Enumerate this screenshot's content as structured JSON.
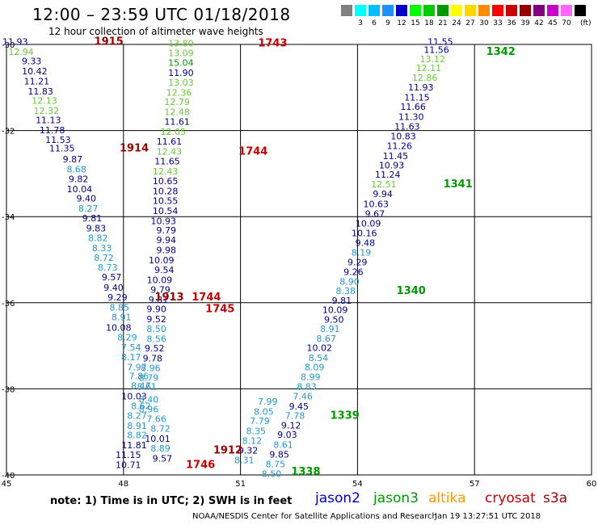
{
  "header": {
    "title": "12:00 – 23:59 UTC 01/18/2018",
    "subtitle": "12 hour collection of altimeter wave heights"
  },
  "legend": {
    "unit": "(ft)",
    "items": [
      {
        "label": "",
        "color": "#808080"
      },
      {
        "label": "3",
        "color": "#00ffff"
      },
      {
        "label": "6",
        "color": "#00bfff"
      },
      {
        "label": "9",
        "color": "#1e90ff"
      },
      {
        "label": "12",
        "color": "#0000cd"
      },
      {
        "label": "15",
        "color": "#00ff00"
      },
      {
        "label": "18",
        "color": "#00cc00"
      },
      {
        "label": "21",
        "color": "#009900"
      },
      {
        "label": "24",
        "color": "#ffff00"
      },
      {
        "label": "27",
        "color": "#ffd700"
      },
      {
        "label": "30",
        "color": "#ff8c00"
      },
      {
        "label": "33",
        "color": "#ff0000"
      },
      {
        "label": "36",
        "color": "#cc0000"
      },
      {
        "label": "39",
        "color": "#990000"
      },
      {
        "label": "42",
        "color": "#800080"
      },
      {
        "label": "45",
        "color": "#cc00cc"
      },
      {
        "label": "70",
        "color": "#ff66ff"
      },
      {
        "label": "",
        "color": "#000000"
      }
    ]
  },
  "note": "note:  1) Time is in UTC;  2) SWH is in feet",
  "satellites": [
    {
      "name": "jason2",
      "color": "#0000cc"
    },
    {
      "name": "jason3",
      "color": "#009900"
    },
    {
      "name": "altika",
      "color": "#ff9900"
    },
    {
      "name": "cryosat",
      "color": "#cc0000"
    },
    {
      "name": "s3a",
      "color": "#990000"
    }
  ],
  "footer": {
    "left": "NOAA/NESDIS Center for Satellite Applications and Research",
    "right": "Jan 19 13:27:51 UTC 2018"
  },
  "chart_data": {
    "type": "scatter",
    "title": "",
    "xlabel": "",
    "ylabel": "",
    "xlim": [
      45,
      60
    ],
    "ylim": [
      -40,
      -30
    ],
    "xticks": [
      45,
      48,
      51,
      54,
      57,
      60
    ],
    "yticks": [
      -30,
      -32,
      -34,
      -36,
      -38,
      -40
    ],
    "grid": true,
    "series": [
      {
        "color": "#000080",
        "points": [
          [
            45.55,
            -30.01,
            "11.93",
            "#00008b"
          ],
          [
            45.7,
            -30.24,
            "12.94",
            "#66cc33"
          ],
          [
            45.9,
            -30.46,
            "9.33",
            "#00008b"
          ],
          [
            46.05,
            -30.69,
            "10.42",
            "#00008b"
          ],
          [
            46.1,
            -30.93,
            "11.21",
            "#00008b"
          ],
          [
            46.2,
            -31.16,
            "11.83",
            "#00008b"
          ],
          [
            46.3,
            -31.38,
            "12.13",
            "#66cc33"
          ],
          [
            46.35,
            -31.61,
            "12.32",
            "#66cc33"
          ],
          [
            46.4,
            -31.83,
            "11.13",
            "#00008b"
          ],
          [
            46.5,
            -32.06,
            "11.78",
            "#00008b"
          ],
          [
            46.65,
            -32.29,
            "11.53",
            "#00008b"
          ],
          [
            46.75,
            -32.49,
            "11.35",
            "#00008b"
          ],
          [
            46.95,
            -32.74,
            "9.87",
            "#00008b"
          ],
          [
            47.05,
            -32.97,
            "8.68",
            "#2299cc"
          ],
          [
            47.1,
            -33.2,
            "9.82",
            "#00008b"
          ],
          [
            47.2,
            -33.43,
            "10.04",
            "#00008b"
          ],
          [
            47.3,
            -33.65,
            "9.40",
            "#00008b"
          ],
          [
            47.35,
            -33.88,
            "8.27",
            "#2299cc"
          ],
          [
            47.45,
            -34.11,
            "9.81",
            "#00008b"
          ],
          [
            47.55,
            -34.34,
            "9.83",
            "#00008b"
          ],
          [
            47.6,
            -34.57,
            "8.82",
            "#2299cc"
          ],
          [
            47.7,
            -34.8,
            "8.33",
            "#2299cc"
          ],
          [
            47.75,
            -35.03,
            "8.72",
            "#2299cc"
          ],
          [
            47.85,
            -35.25,
            "8.73",
            "#2299cc"
          ],
          [
            47.95,
            -35.48,
            "9.57",
            "#00008b"
          ],
          [
            48.0,
            -35.72,
            "9.40",
            "#00008b"
          ],
          [
            48.1,
            -35.95,
            "9.29",
            "#00008b"
          ],
          [
            48.15,
            -36.18,
            "8.85",
            "#2299cc"
          ],
          [
            48.2,
            -36.41,
            "8.91",
            "#2299cc"
          ],
          [
            48.2,
            -36.65,
            "10.08",
            "#00008b"
          ],
          [
            48.35,
            -36.88,
            "8.29",
            "#2299cc"
          ],
          [
            48.45,
            -37.11,
            "7.54",
            "#2299cc"
          ],
          [
            48.45,
            -37.34,
            "8.17",
            "#2299cc"
          ],
          [
            48.6,
            -37.57,
            "7.97",
            "#2299cc"
          ],
          [
            48.65,
            -37.78,
            "7.86",
            "#2299cc"
          ],
          [
            48.7,
            -38.0,
            "8.47",
            "#2299cc"
          ],
          [
            48.6,
            -38.25,
            "10.03",
            "#00008b"
          ],
          [
            48.7,
            -38.47,
            "8.62",
            "#2299cc"
          ],
          [
            48.6,
            -38.7,
            "8.27",
            "#2299cc"
          ],
          [
            48.6,
            -38.93,
            "8.91",
            "#2299cc"
          ],
          [
            48.6,
            -39.15,
            "8.82",
            "#2299cc"
          ],
          [
            48.6,
            -39.38,
            "11.81",
            "#00008b"
          ],
          [
            48.45,
            -39.61,
            "11.15",
            "#00008b"
          ],
          [
            48.45,
            -39.84,
            "10.71",
            "#00008b"
          ]
        ]
      },
      {
        "color": "#000080",
        "points": [
          [
            49.8,
            -30.05,
            "13.80",
            "#66cc33"
          ],
          [
            49.8,
            -30.27,
            "13.09",
            "#66cc33"
          ],
          [
            49.8,
            -30.5,
            "15.04",
            "#009900"
          ],
          [
            49.8,
            -30.73,
            "11.90",
            "#00008b"
          ],
          [
            49.8,
            -30.96,
            "13.03",
            "#66cc33"
          ],
          [
            49.75,
            -31.19,
            "12.36",
            "#66cc33"
          ],
          [
            49.7,
            -31.41,
            "12.79",
            "#66cc33"
          ],
          [
            49.7,
            -31.64,
            "12.48",
            "#66cc33"
          ],
          [
            49.7,
            -31.87,
            "11.61",
            "#00008b"
          ],
          [
            49.6,
            -32.1,
            "12.05",
            "#66cc33"
          ],
          [
            49.5,
            -32.33,
            "11.61",
            "#00008b"
          ],
          [
            49.5,
            -32.56,
            "12.43",
            "#66cc33"
          ],
          [
            49.45,
            -32.79,
            "11.65",
            "#00008b"
          ],
          [
            49.4,
            -33.02,
            "12.43",
            "#66cc33"
          ],
          [
            49.4,
            -33.25,
            "10.65",
            "#00008b"
          ],
          [
            49.4,
            -33.48,
            "10.28",
            "#00008b"
          ],
          [
            49.4,
            -33.71,
            "10.55",
            "#00008b"
          ],
          [
            49.4,
            -33.94,
            "10.54",
            "#00008b"
          ],
          [
            49.35,
            -34.17,
            "10.93",
            "#00008b"
          ],
          [
            49.35,
            -34.39,
            "9.79",
            "#00008b"
          ],
          [
            49.35,
            -34.62,
            "9.94",
            "#00008b"
          ],
          [
            49.35,
            -34.85,
            "9.98",
            "#00008b"
          ],
          [
            49.3,
            -35.08,
            "10.09",
            "#00008b"
          ],
          [
            49.3,
            -35.31,
            "9.54",
            "#00008b"
          ],
          [
            49.25,
            -35.54,
            "10.09",
            "#00008b"
          ],
          [
            49.2,
            -35.77,
            "9.79",
            "#00008b"
          ],
          [
            49.15,
            -36.0,
            "9.81",
            "#00008b"
          ],
          [
            49.1,
            -36.22,
            "9.90",
            "#00008b"
          ],
          [
            49.1,
            -36.45,
            "9.52",
            "#00008b"
          ],
          [
            49.1,
            -36.68,
            "8.50",
            "#2299cc"
          ],
          [
            49.1,
            -36.91,
            "8.56",
            "#2299cc"
          ],
          [
            49.05,
            -37.13,
            "9.52",
            "#00008b"
          ],
          [
            49.0,
            -37.36,
            "9.78",
            "#00008b"
          ],
          [
            48.95,
            -37.59,
            "8.96",
            "#2299cc"
          ],
          [
            48.9,
            -37.81,
            "8.79",
            "#2299cc"
          ],
          [
            48.85,
            -38.02,
            "8.61",
            "#2299cc"
          ],
          [
            48.9,
            -38.32,
            "8.40",
            "#2299cc"
          ],
          [
            48.9,
            -38.55,
            "8.96",
            "#2299cc"
          ],
          [
            49.1,
            -38.77,
            "7.66",
            "#2299cc"
          ],
          [
            49.2,
            -39.0,
            "8.72",
            "#2299cc"
          ],
          [
            49.2,
            -39.23,
            "10.01",
            "#00008b"
          ],
          [
            49.2,
            -39.46,
            "8.89",
            "#2299cc"
          ],
          [
            49.25,
            -39.69,
            "9.57",
            "#00008b"
          ]
        ]
      },
      {
        "color": "#000080",
        "points": [
          [
            56.45,
            -30.01,
            "11.55",
            "#00008b"
          ],
          [
            56.35,
            -30.2,
            "11.56",
            "#00008b"
          ],
          [
            56.25,
            -30.41,
            "13.12",
            "#66cc33"
          ],
          [
            56.15,
            -30.62,
            "12.11",
            "#66cc33"
          ],
          [
            56.05,
            -30.84,
            "12.86",
            "#66cc33"
          ],
          [
            55.95,
            -31.07,
            "11.93",
            "#00008b"
          ],
          [
            55.85,
            -31.3,
            "11.15",
            "#00008b"
          ],
          [
            55.75,
            -31.52,
            "11.66",
            "#00008b"
          ],
          [
            55.7,
            -31.75,
            "11.30",
            "#00008b"
          ],
          [
            55.6,
            -31.98,
            "11.63",
            "#00008b"
          ],
          [
            55.5,
            -32.2,
            "10.83",
            "#00008b"
          ],
          [
            55.4,
            -32.43,
            "11.26",
            "#00008b"
          ],
          [
            55.3,
            -32.66,
            "11.45",
            "#00008b"
          ],
          [
            55.2,
            -32.88,
            "10.93",
            "#00008b"
          ],
          [
            55.1,
            -33.1,
            "11.24",
            "#00008b"
          ],
          [
            55.0,
            -33.32,
            "12.51",
            "#66cc33"
          ],
          [
            54.9,
            -33.55,
            "9.94",
            "#00008b"
          ],
          [
            54.8,
            -33.78,
            "10.63",
            "#00008b"
          ],
          [
            54.7,
            -34.01,
            "9.67",
            "#00008b"
          ],
          [
            54.6,
            -34.23,
            "10.09",
            "#00008b"
          ],
          [
            54.5,
            -34.46,
            "10.16",
            "#00008b"
          ],
          [
            54.45,
            -34.68,
            "9.48",
            "#00008b"
          ],
          [
            54.35,
            -34.91,
            "8.19",
            "#2299cc"
          ],
          [
            54.25,
            -35.13,
            "9.29",
            "#00008b"
          ],
          [
            54.15,
            -35.36,
            "9.26",
            "#00008b"
          ],
          [
            54.05,
            -35.58,
            "8.90",
            "#2299cc"
          ],
          [
            53.95,
            -35.8,
            "8.38",
            "#2299cc"
          ],
          [
            53.85,
            -36.02,
            "9.81",
            "#00008b"
          ],
          [
            53.75,
            -36.24,
            "10.09",
            "#00008b"
          ],
          [
            53.65,
            -36.46,
            "9.50",
            "#00008b"
          ],
          [
            53.55,
            -36.68,
            "8.91",
            "#2299cc"
          ],
          [
            53.45,
            -36.9,
            "8.67",
            "#2299cc"
          ],
          [
            53.35,
            -37.12,
            "10.02",
            "#00008b"
          ],
          [
            53.25,
            -37.35,
            "8.54",
            "#2299cc"
          ],
          [
            53.15,
            -37.57,
            "8.09",
            "#2299cc"
          ],
          [
            53.05,
            -37.8,
            "8.99",
            "#2299cc"
          ],
          [
            52.95,
            -38.02,
            "8.83",
            "#2299cc"
          ],
          [
            52.85,
            -38.25,
            "7.46",
            "#2299cc"
          ],
          [
            52.75,
            -38.48,
            "9.45",
            "#00008b"
          ],
          [
            52.65,
            -38.7,
            "7.78",
            "#2299cc"
          ],
          [
            52.55,
            -38.92,
            "9.12",
            "#00008b"
          ],
          [
            52.45,
            -39.14,
            "9.03",
            "#00008b"
          ],
          [
            52.35,
            -39.37,
            "8.61",
            "#2299cc"
          ],
          [
            52.25,
            -39.6,
            "9.85",
            "#00008b"
          ],
          [
            52.15,
            -39.82,
            "8.75",
            "#2299cc"
          ],
          [
            52.05,
            -40.05,
            "8.50",
            "#2299cc"
          ]
        ]
      }
    ],
    "raw_points_extra": [
      [
        51.95,
        -38.37,
        "7.99",
        "#2299cc"
      ],
      [
        51.85,
        -38.6,
        "8.05",
        "#2299cc"
      ],
      [
        51.75,
        -38.82,
        "7.79",
        "#2299cc"
      ],
      [
        51.65,
        -39.05,
        "8.35",
        "#2299cc"
      ],
      [
        51.55,
        -39.28,
        "8.12",
        "#2299cc"
      ],
      [
        51.45,
        -39.5,
        "9.32",
        "#00008b"
      ],
      [
        51.35,
        -39.73,
        "8.31",
        "#2299cc"
      ]
    ],
    "time_labels": [
      {
        "text": "1915",
        "x": 47.25,
        "y": -30.01,
        "color": "#990000"
      },
      {
        "text": "1743",
        "x": 51.45,
        "y": -30.05,
        "color": "#cc0000"
      },
      {
        "text": "1342",
        "x": 57.3,
        "y": -30.24,
        "color": "#009900"
      },
      {
        "text": "1914",
        "x": 47.9,
        "y": -32.49,
        "color": "#990000"
      },
      {
        "text": "1744",
        "x": 50.95,
        "y": -32.56,
        "color": "#cc0000"
      },
      {
        "text": "1341",
        "x": 56.2,
        "y": -33.32,
        "color": "#009900"
      },
      {
        "text": "1913",
        "x": 48.8,
        "y": -35.95,
        "color": "#990000"
      },
      {
        "text": "1744",
        "x": 49.75,
        "y": -35.95,
        "color": "#cc0000"
      },
      {
        "text": "1745",
        "x": 50.1,
        "y": -36.22,
        "color": "#cc0000"
      },
      {
        "text": "1340",
        "x": 55.0,
        "y": -35.8,
        "color": "#009900"
      },
      {
        "text": "1339",
        "x": 53.3,
        "y": -38.7,
        "color": "#009900"
      },
      {
        "text": "1912",
        "x": 50.3,
        "y": -39.5,
        "color": "#990000"
      },
      {
        "text": "1746",
        "x": 49.6,
        "y": -39.84,
        "color": "#cc0000"
      },
      {
        "text": "1338",
        "x": 52.3,
        "y": -40.0,
        "color": "#009900"
      }
    ]
  }
}
